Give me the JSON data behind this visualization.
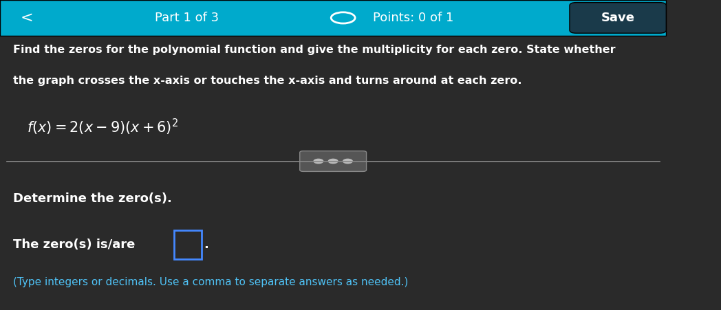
{
  "header_bg_color": "#00AACC",
  "body_bg_color": "#2A2A2A",
  "title_bar_text": "Part 1 of 3",
  "points_text": "Points: 0 of 1",
  "save_text": "Save",
  "instruction_line1": "Find the zeros for the polynomial function and give the multiplicity for each zero. State whether",
  "instruction_line2": "the graph crosses the x-axis or touches the x-axis and turns around at each zero.",
  "section_label": "Determine the zero(s).",
  "answer_line1_prefix": "The zero(s) is/are ",
  "answer_line2": "(Type integers or decimals. Use a comma to separate answers as needed.)",
  "text_color_white": "#FFFFFF",
  "text_color_blue": "#4FC3F7",
  "box_color": "#4488FF",
  "divider_color": "#888888",
  "handle_color": "#555555",
  "dot_color": "#BBBBBB",
  "save_btn_color": "#1A3A4A"
}
